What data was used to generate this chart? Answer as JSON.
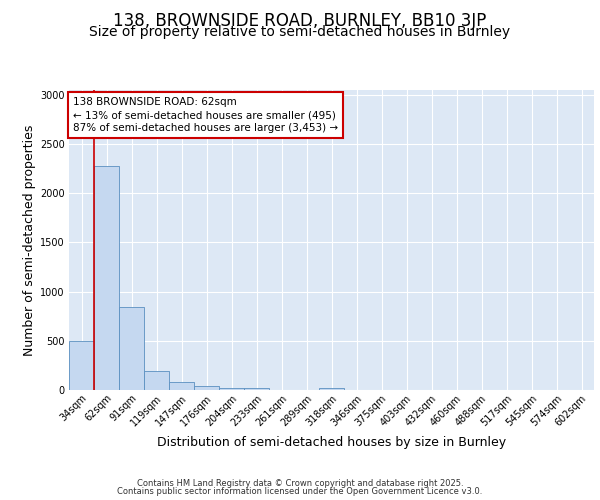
{
  "title_line1": "138, BROWNSIDE ROAD, BURNLEY, BB10 3JP",
  "title_line2": "Size of property relative to semi-detached houses in Burnley",
  "xlabel": "Distribution of semi-detached houses by size in Burnley",
  "ylabel": "Number of semi-detached properties",
  "bin_labels": [
    "34sqm",
    "62sqm",
    "91sqm",
    "119sqm",
    "147sqm",
    "176sqm",
    "204sqm",
    "233sqm",
    "261sqm",
    "289sqm",
    "318sqm",
    "346sqm",
    "375sqm",
    "403sqm",
    "432sqm",
    "460sqm",
    "488sqm",
    "517sqm",
    "545sqm",
    "574sqm",
    "602sqm"
  ],
  "bar_heights": [
    500,
    2280,
    840,
    190,
    80,
    40,
    25,
    20,
    0,
    0,
    25,
    0,
    0,
    0,
    0,
    0,
    0,
    0,
    0,
    0,
    0
  ],
  "bar_color": "#c5d8f0",
  "bar_edge_color": "#5a8fc0",
  "background_color": "#dde8f5",
  "grid_color": "#ffffff",
  "vline_x": 1,
  "vline_color": "#cc0000",
  "annotation_text": "138 BROWNSIDE ROAD: 62sqm\n← 13% of semi-detached houses are smaller (495)\n87% of semi-detached houses are larger (3,453) →",
  "annotation_box_color": "#cc0000",
  "ylim": [
    0,
    3050
  ],
  "yticks": [
    0,
    500,
    1000,
    1500,
    2000,
    2500,
    3000
  ],
  "footer_line1": "Contains HM Land Registry data © Crown copyright and database right 2025.",
  "footer_line2": "Contains public sector information licensed under the Open Government Licence v3.0.",
  "title_fontsize": 12,
  "subtitle_fontsize": 10,
  "axis_label_fontsize": 9,
  "tick_fontsize": 7,
  "footer_fontsize": 6,
  "annotation_fontsize": 7.5
}
